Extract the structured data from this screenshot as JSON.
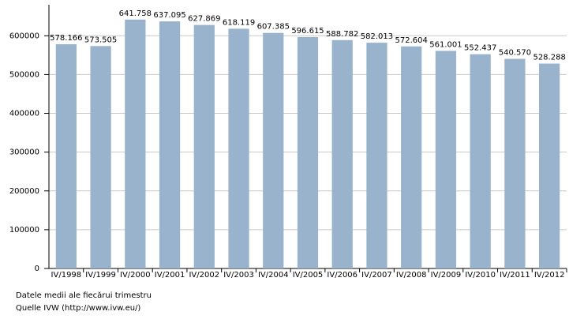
{
  "chart_data": {
    "type": "bar",
    "categories": [
      "IV/1998",
      "IV/1999",
      "IV/2000",
      "IV/2001",
      "IV/2002",
      "IV/2003",
      "IV/2004",
      "IV/2005",
      "IV/2006",
      "IV/2007",
      "IV/2008",
      "IV/2009",
      "IV/2010",
      "IV/2011",
      "IV/2012"
    ],
    "values": [
      578166,
      573505,
      641758,
      637095,
      627869,
      618119,
      607385,
      596615,
      588782,
      582013,
      572604,
      561001,
      552437,
      540570,
      528288
    ],
    "value_labels": [
      "578.166",
      "573.505",
      "641.758",
      "637.095",
      "627.869",
      "618.119",
      "607.385",
      "596.615",
      "588.782",
      "582.013",
      "572.604",
      "561.001",
      "552.437",
      "540.570",
      "528.288"
    ],
    "color": "#9ab3cc",
    "ylim": [
      0,
      680000
    ],
    "yticks": [
      0,
      100000,
      200000,
      300000,
      400000,
      500000,
      600000
    ],
    "grid": true,
    "notes": [
      "Datele medii ale fiecărui trimestru",
      "Quelle IVW (http://www.ivw.eu/)"
    ]
  }
}
